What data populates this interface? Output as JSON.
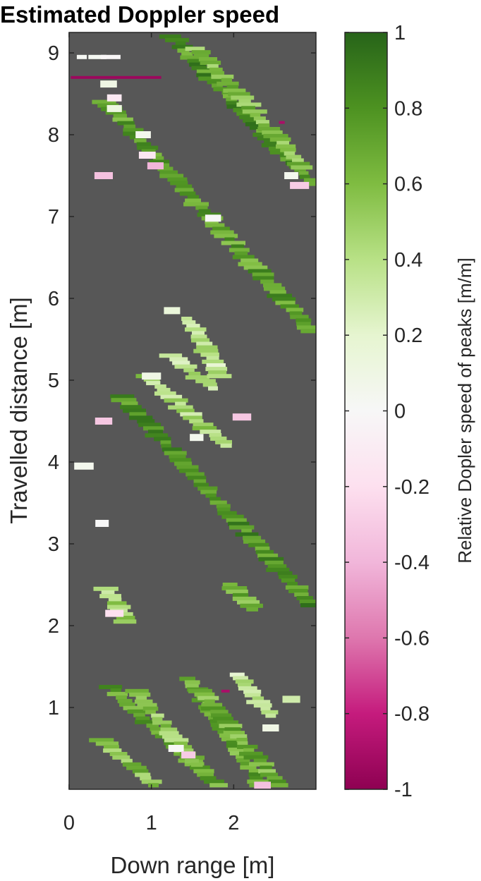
{
  "chart_data": {
    "type": "heatmap",
    "title": "Estimated Doppler speed",
    "xlabel": "Down range [m]",
    "ylabel": "Travelled distance [m]",
    "xlim": [
      0,
      3
    ],
    "ylim": [
      0,
      9.25
    ],
    "x_ticks": [
      "0",
      "1",
      "2"
    ],
    "x_tick_values": [
      0,
      1,
      2
    ],
    "y_ticks": [
      "1",
      "2",
      "3",
      "4",
      "5",
      "6",
      "7",
      "8",
      "9"
    ],
    "y_tick_values": [
      1,
      2,
      3,
      4,
      5,
      6,
      7,
      8,
      9
    ],
    "background_color": "#575757",
    "colorbar": {
      "label": "Relative Dopler speed of peaks [m/m]",
      "limits": [
        -1,
        1
      ],
      "ticks": [
        "1",
        "0.8",
        "0.6",
        "0.4",
        "0.2",
        "0",
        "-0.2",
        "-0.4",
        "-0.6",
        "-0.8",
        "-1"
      ],
      "tick_values": [
        1,
        0.8,
        0.6,
        0.4,
        0.2,
        0,
        -0.2,
        -0.4,
        -0.6,
        -0.8,
        -1
      ],
      "colors": [
        "#8e0152",
        "#c51b7d",
        "#de77ae",
        "#f1b6da",
        "#fde0ef",
        "#f7f7f7",
        "#e6f5d0",
        "#b8e186",
        "#7fbc41",
        "#4d9221",
        "#276419"
      ]
    },
    "streaks": [
      {
        "x1": 0.45,
        "y1": 8.4,
        "x2": 2.95,
        "y2": 5.6,
        "value": 0.72
      },
      {
        "x1": 1.25,
        "y1": 9.2,
        "x2": 2.95,
        "y2": 7.4,
        "value": 0.78
      },
      {
        "x1": 1.55,
        "y1": 9.05,
        "x2": 2.85,
        "y2": 7.6,
        "value": 0.6
      },
      {
        "x1": 0.65,
        "y1": 4.8,
        "x2": 2.95,
        "y2": 2.25,
        "value": 0.8
      },
      {
        "x1": 0.95,
        "y1": 5.05,
        "x2": 1.9,
        "y2": 4.2,
        "value": 0.45
      },
      {
        "x1": 1.25,
        "y1": 5.3,
        "x2": 1.75,
        "y2": 4.9,
        "value": 0.4
      },
      {
        "x1": 1.45,
        "y1": 5.75,
        "x2": 1.85,
        "y2": 5.05,
        "value": 0.35
      },
      {
        "x1": 0.5,
        "y1": 1.25,
        "x2": 1.8,
        "y2": 0.05,
        "value": 0.72
      },
      {
        "x1": 0.4,
        "y1": 0.6,
        "x2": 1.05,
        "y2": 0.05,
        "value": 0.6
      },
      {
        "x1": 0.8,
        "y1": 1.2,
        "x2": 1.55,
        "y2": 0.3,
        "value": 0.55
      },
      {
        "x1": 1.45,
        "y1": 1.35,
        "x2": 2.35,
        "y2": 0.05,
        "value": 0.7
      },
      {
        "x1": 1.6,
        "y1": 1.2,
        "x2": 2.55,
        "y2": 0.05,
        "value": 0.65
      },
      {
        "x1": 2.05,
        "y1": 1.4,
        "x2": 2.45,
        "y2": 0.9,
        "value": 0.35
      },
      {
        "x1": 0.45,
        "y1": 2.45,
        "x2": 0.7,
        "y2": 2.05,
        "value": 0.45
      },
      {
        "x1": 1.95,
        "y1": 2.5,
        "x2": 2.25,
        "y2": 2.2,
        "value": 0.65
      },
      {
        "x1": 0.15,
        "y1": 8.95,
        "x2": 0.5,
        "y2": 8.95,
        "value": 0.15
      }
    ],
    "spots": [
      {
        "x": 0.48,
        "y": 8.62,
        "value": 0.1
      },
      {
        "x": 0.55,
        "y": 8.45,
        "value": -0.12
      },
      {
        "x": 0.55,
        "y": 8.32,
        "value": 0.12
      },
      {
        "x": 0.9,
        "y": 8.0,
        "value": 0.05
      },
      {
        "x": 0.95,
        "y": 7.75,
        "value": -0.15
      },
      {
        "x": 1.05,
        "y": 7.62,
        "value": -0.4
      },
      {
        "x": 0.42,
        "y": 7.5,
        "value": -0.35
      },
      {
        "x": 2.7,
        "y": 7.5,
        "value": 0.05
      },
      {
        "x": 2.8,
        "y": 7.38,
        "value": -0.3
      },
      {
        "x": 1.75,
        "y": 6.98,
        "value": 0.0
      },
      {
        "x": 1.25,
        "y": 5.85,
        "value": 0.15
      },
      {
        "x": 1.0,
        "y": 5.05,
        "value": 0.1
      },
      {
        "x": 0.42,
        "y": 4.5,
        "value": -0.32
      },
      {
        "x": 2.1,
        "y": 4.55,
        "value": -0.32
      },
      {
        "x": 1.55,
        "y": 4.3,
        "value": 0.05
      },
      {
        "x": 0.18,
        "y": 3.95,
        "value": 0.05
      },
      {
        "x": 0.4,
        "y": 3.25,
        "value": 0.0
      },
      {
        "x": 0.55,
        "y": 2.15,
        "value": -0.2
      },
      {
        "x": 1.3,
        "y": 0.5,
        "value": 0.0
      },
      {
        "x": 1.45,
        "y": 0.42,
        "value": -0.3
      },
      {
        "x": 2.35,
        "y": 0.05,
        "value": -0.35
      },
      {
        "x": 2.45,
        "y": 0.75,
        "value": 0.1
      },
      {
        "x": 2.7,
        "y": 1.1,
        "value": 0.3
      }
    ],
    "lines": [
      {
        "x1": 0.02,
        "x2": 1.12,
        "y": 8.7,
        "value": -0.95
      },
      {
        "x1": 1.85,
        "x2": 1.95,
        "y": 1.2,
        "value": -0.9
      },
      {
        "x1": 2.55,
        "x2": 2.62,
        "y": 8.15,
        "value": -0.9
      }
    ]
  }
}
